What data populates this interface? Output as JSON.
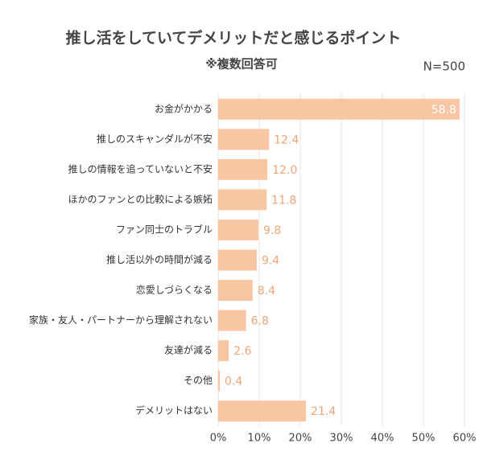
{
  "chart_data": {
    "type": "bar",
    "orientation": "horizontal",
    "title": "推し活をしていてデメリットだと感じるポイント",
    "subtitle": "※複数回答可",
    "note": "N=500",
    "categories": [
      "お金がかかる",
      "推しのスキャンダルが不安",
      "推しの情報を追っていないと不安",
      "ほかのファンとの比較による嫉妬",
      "ファン同士のトラブル",
      "推し活以外の時間が減る",
      "恋愛しづらくなる",
      "家族・友人・パートナーから理解されない",
      "友達が減る",
      "その他",
      "デメリットはない"
    ],
    "values": [
      58.8,
      12.4,
      12.0,
      11.8,
      9.8,
      9.4,
      8.4,
      6.8,
      2.6,
      0.4,
      21.4
    ],
    "value_labels": [
      "58.8",
      "12.4",
      "12.0",
      "11.8",
      "9.8",
      "9.4",
      "8.4",
      "6.8",
      "2.6",
      "0.4",
      "21.4"
    ],
    "color": "#f9c6a3",
    "label_color": "#f0a677",
    "xlim": [
      0,
      60
    ],
    "xticks": [
      {
        "value": 0,
        "label": "0%"
      },
      {
        "value": 10,
        "label": "10%"
      },
      {
        "value": 20,
        "label": "20%"
      },
      {
        "value": 30,
        "label": "30%"
      },
      {
        "value": 40,
        "label": "40%"
      },
      {
        "value": 50,
        "label": "50%"
      },
      {
        "value": 60,
        "label": "60%"
      }
    ],
    "grid": true
  }
}
